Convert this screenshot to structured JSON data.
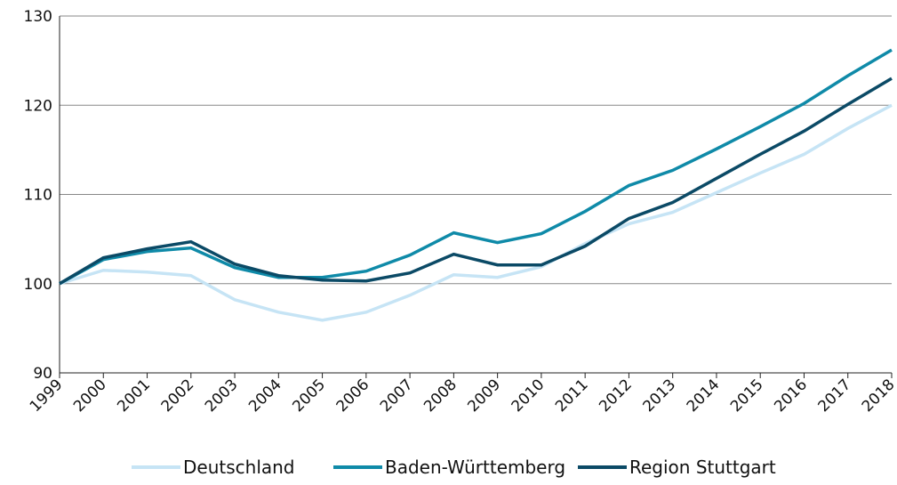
{
  "chart_data": {
    "type": "line",
    "categories": [
      "1999",
      "2000",
      "2001",
      "2002",
      "2003",
      "2004",
      "2005",
      "2006",
      "2007",
      "2008",
      "2009",
      "2010",
      "2011",
      "2012",
      "2013",
      "2014",
      "2015",
      "2016",
      "2017",
      "2018"
    ],
    "series": [
      {
        "name": "Deutschland",
        "color": "#c6e4f5",
        "values": [
          100,
          101.5,
          101.3,
          100.9,
          98.2,
          96.8,
          95.9,
          96.8,
          98.7,
          101.0,
          100.7,
          101.9,
          104.5,
          106.7,
          108.0,
          110.2,
          112.4,
          114.5,
          117.4,
          120.0
        ]
      },
      {
        "name": "Baden-Württemberg",
        "color": "#0f8aa8",
        "values": [
          100,
          102.7,
          103.6,
          104.0,
          101.8,
          100.7,
          100.7,
          101.4,
          103.2,
          105.7,
          104.6,
          105.6,
          108.1,
          111.0,
          112.7,
          115.1,
          117.6,
          120.2,
          123.3,
          126.2
        ]
      },
      {
        "name": "Region Stuttgart",
        "color": "#0b4a66",
        "values": [
          100,
          102.9,
          103.9,
          104.7,
          102.2,
          100.9,
          100.4,
          100.3,
          101.2,
          103.3,
          102.1,
          102.1,
          104.2,
          107.3,
          109.1,
          111.8,
          114.5,
          117.1,
          120.1,
          123.0
        ]
      }
    ],
    "ylim": [
      90,
      130
    ],
    "yticks": [
      90,
      100,
      110,
      120,
      130
    ],
    "grid": true
  }
}
